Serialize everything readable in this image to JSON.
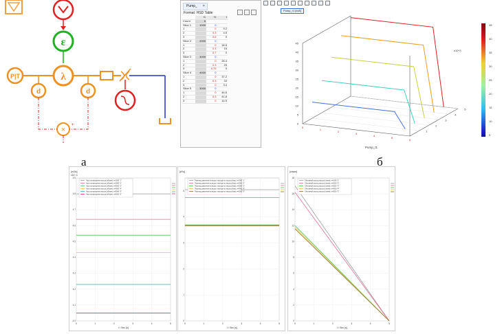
{
  "captions": {
    "left": "а",
    "right": "б"
  },
  "schematic": {
    "labels": {
      "pt": "P|T",
      "epsilon": "ε",
      "lambda": "λ",
      "d1": "d",
      "d2": "d",
      "x": "x",
      "mult_sign": "×",
      "plus": "+"
    }
  },
  "table_window": {
    "tab_label": "Pump_",
    "close": "×",
    "header_label": "Format: HSD Table",
    "columns": [
      "",
      "t1",
      "t1",
      "t"
    ],
    "rows": [
      [
        "Count",
        "6",
        "",
        ""
      ],
      [
        "Slice 1",
        "1000",
        "0",
        ""
      ],
      [
        "1",
        "",
        "0",
        "9.2"
      ],
      [
        "2",
        "",
        "0.3",
        "4.5"
      ],
      [
        "3",
        "",
        "0.6",
        "0"
      ],
      [
        "Slice 2",
        "2000",
        "0",
        ""
      ],
      [
        "1",
        "",
        "0",
        "18.5"
      ],
      [
        "2",
        "",
        "0.3",
        "15"
      ],
      [
        "3",
        "",
        "0.7",
        "0"
      ],
      [
        "Slice 3",
        "3000",
        "0",
        ""
      ],
      [
        "1",
        "",
        "0",
        "28.4"
      ],
      [
        "2",
        "",
        "0.3",
        "25"
      ],
      [
        "3",
        "",
        "0.75",
        "0"
      ],
      [
        "Slice 4",
        "4000",
        "0",
        ""
      ],
      [
        "1",
        "",
        "0",
        "37.2"
      ],
      [
        "2",
        "",
        "0.3",
        "34"
      ],
      [
        "3",
        "",
        "0",
        "3.4"
      ],
      [
        "Slice 5",
        "3000",
        "0",
        ""
      ],
      [
        "1",
        "",
        "0",
        "44.6"
      ],
      [
        "2",
        "",
        "0.3",
        "41.8"
      ],
      [
        "3",
        "",
        "0",
        "14.5"
      ]
    ]
  },
  "plot3d": {
    "legend": "Pump_r1 [kvE]",
    "xlabel": "Pump_t1",
    "colorbar_ticks": [
      "45",
      "40",
      "35",
      "30",
      "25",
      "20",
      "15",
      "10",
      "5"
    ],
    "axis_ticks_left": [
      "45",
      "40",
      "35",
      "30",
      "25",
      "20",
      "15",
      "10",
      "5",
      "0"
    ],
    "axis_ticks_bottom": [
      "0",
      "1",
      "2",
      "3",
      "4",
      "5",
      "6"
    ],
    "axis_ticks_right": [
      "5",
      "4",
      "3",
      "2",
      "1"
    ],
    "axis_unit_right": "x10^3",
    "colors": {
      "palette": [
        "#d42020",
        "#e8a020",
        "#c8d040",
        "#40d0c0",
        "#4070e0"
      ]
    }
  },
  "chart_data": [
    {
      "type": "line",
      "title": "",
      "ylabel": "[m3/s]",
      "yunit": "x10^-3",
      "xlabel": "t / Sec [s]",
      "yticks": [
        "4.9",
        "4.8",
        "4.7",
        "4.6",
        "4.5",
        "4.4",
        "4.3",
        "4.2",
        "4.1",
        "4.0"
      ],
      "xticks": [
        "0",
        "1",
        "2",
        "3",
        "4",
        "5"
      ],
      "ylim": [
        4.0,
        4.9
      ],
      "xlim": [
        0,
        5
      ],
      "legend": [
        "Частота вращения насоса [об/мин]; n=1000 \"1\"",
        "Частота вращения насоса [об/мин]; n=2000 \"2\"",
        "Частота вращения насоса [об/мин]; n=3000 \"3\"",
        "Частота вращения насоса [об/мин]; n=4000 \"4\"",
        "Частота вращения насоса [об/мин]; n=5000 \"5\"",
        "Частота вращения насоса [об/мин]; n=6000 \"6\""
      ],
      "series": [
        {
          "values": [
            4.8,
            4.8
          ],
          "color": "#9a9a9a"
        },
        {
          "values": [
            4.64,
            4.64
          ],
          "color": "#e06a8a"
        },
        {
          "values": [
            4.54,
            4.54
          ],
          "color": "#4cc44c"
        },
        {
          "values": [
            4.43,
            4.43
          ],
          "color": "#e8c040"
        },
        {
          "values": [
            4.23,
            4.23
          ],
          "color": "#40a8b0"
        },
        {
          "values": [
            4.05,
            4.05
          ],
          "color": "#d03080"
        }
      ],
      "x": [
        0,
        5
      ]
    },
    {
      "type": "line",
      "title": "",
      "ylabel": "[кПа]",
      "xlabel": "t / Sec [s]",
      "yticks": [
        "5",
        "4",
        "3",
        "2",
        "1",
        "0"
      ],
      "xticks": [
        "0",
        "1",
        "2",
        "3",
        "4",
        "5"
      ],
      "ylim": [
        0,
        5.5
      ],
      "xlim": [
        0,
        5
      ],
      "legend": [
        "Перепад давления на входе и выходе из насоса [бар]; n=1000 \"1\"",
        "Перепад давления на входе и выходе из насоса [бар]; n=2000 \"2\"",
        "Перепад давления на входе и выходе из насоса [бар]; n=3000 \"3\"",
        "Перепад давления на входе и выходе из насоса [бар]; n=4000 \"4\"",
        "Перепад давления на входе и выходе из насоса [бар]; n=5000 \"5\""
      ],
      "series": [
        {
          "values": [
            5.05,
            5.05
          ],
          "color": "#9a9a9a"
        },
        {
          "values": [
            4.75,
            4.75
          ],
          "color": "#e06a8a"
        },
        {
          "values": [
            3.7,
            3.7
          ],
          "color": "#4cc44c"
        },
        {
          "values": [
            3.68,
            3.68
          ],
          "color": "#e8c040"
        },
        {
          "values": [
            3.66,
            3.66
          ],
          "color": "#8a6a30"
        }
      ],
      "x": [
        0,
        5
      ]
    },
    {
      "type": "line",
      "title": "",
      "ylabel": "[л/мин]",
      "xlabel": "t / Sec [s]",
      "yticks": [
        "18",
        "16",
        "14",
        "12",
        "10",
        "8",
        "6",
        "4",
        "2",
        "0"
      ],
      "xticks": [
        "0",
        "1",
        "2",
        "3",
        "4",
        "5"
      ],
      "ylim": [
        0,
        18
      ],
      "xlim": [
        0,
        5
      ],
      "legend": [
        "Объемный расход насоса [л/мин]; n=1000 \"1\"",
        "Объемный расход насоса [л/мин]; n=2000 \"2\"",
        "Объемный расход насоса [л/мин]; n=3000 \"3\"",
        "Объемный расход насоса [л/мин]; n=4000 \"4\"",
        "Объемный расход насоса [л/мин]; n=5000 \"5\""
      ],
      "series": [
        {
          "values": [
            17.0,
            0
          ],
          "color": "#9a9a9a"
        },
        {
          "values": [
            16.2,
            0
          ],
          "color": "#e06a8a"
        },
        {
          "values": [
            12.0,
            0
          ],
          "color": "#4cc44c"
        },
        {
          "values": [
            11.8,
            0
          ],
          "color": "#e8c040"
        },
        {
          "values": [
            11.6,
            0
          ],
          "color": "#8a6a30"
        }
      ],
      "x": [
        0,
        5
      ]
    }
  ]
}
